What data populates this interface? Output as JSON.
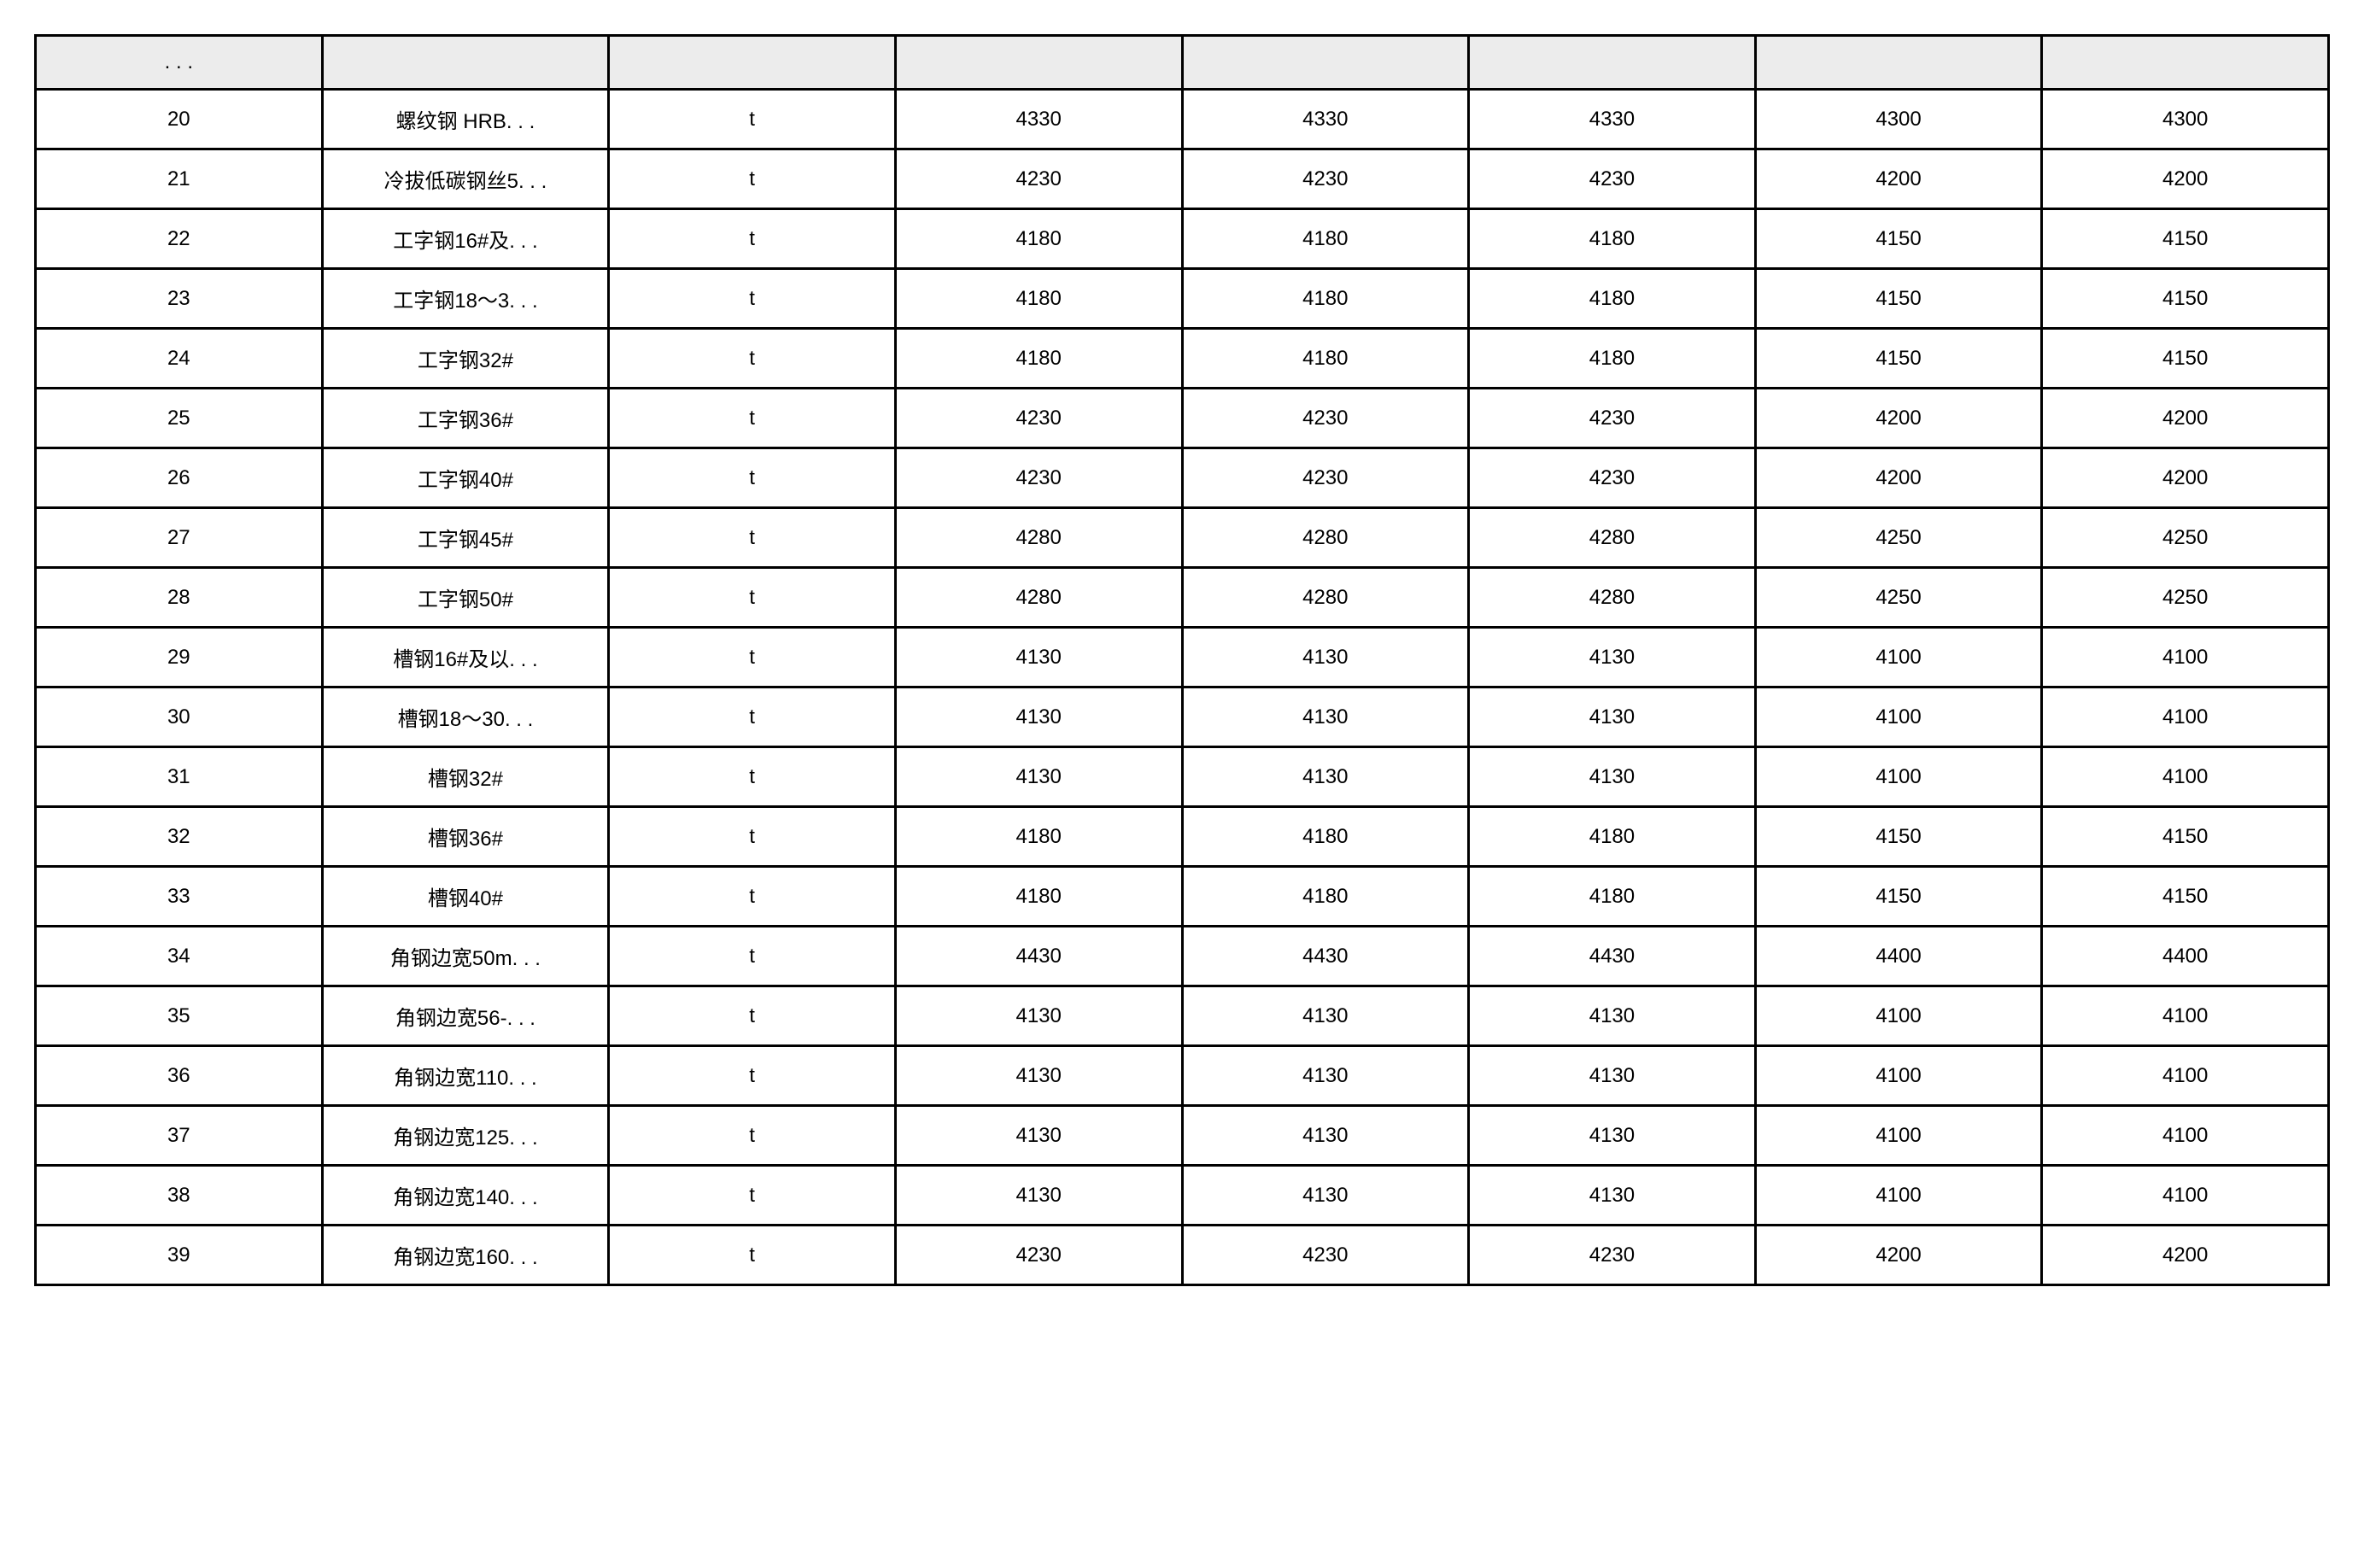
{
  "table": {
    "type": "table",
    "background_color": "#ffffff",
    "header_background_color": "#ececec",
    "border_color": "#000000",
    "border_width": 3,
    "text_color": "#000000",
    "font_size": 24,
    "columns": [
      ". . .",
      "",
      "",
      "",
      "",
      "",
      "",
      ""
    ],
    "column_widths_percent": [
      12.5,
      12.5,
      12.5,
      12.5,
      12.5,
      12.5,
      12.5,
      12.5
    ],
    "column_alignment": [
      "center",
      "center",
      "center",
      "center",
      "center",
      "center",
      "center",
      "center"
    ],
    "rows": [
      [
        "20",
        "螺纹钢 HRB. . .",
        "t",
        "4330",
        "4330",
        "4330",
        "4300",
        "4300"
      ],
      [
        "21",
        "冷拔低碳钢丝5. . .",
        "t",
        "4230",
        "4230",
        "4230",
        "4200",
        "4200"
      ],
      [
        "22",
        "工字钢16#及. . .",
        "t",
        "4180",
        "4180",
        "4180",
        "4150",
        "4150"
      ],
      [
        "23",
        "工字钢18～3. . .",
        "t",
        "4180",
        "4180",
        "4180",
        "4150",
        "4150"
      ],
      [
        "24",
        "工字钢32#",
        "t",
        "4180",
        "4180",
        "4180",
        "4150",
        "4150"
      ],
      [
        "25",
        "工字钢36#",
        "t",
        "4230",
        "4230",
        "4230",
        "4200",
        "4200"
      ],
      [
        "26",
        "工字钢40#",
        "t",
        "4230",
        "4230",
        "4230",
        "4200",
        "4200"
      ],
      [
        "27",
        "工字钢45#",
        "t",
        "4280",
        "4280",
        "4280",
        "4250",
        "4250"
      ],
      [
        "28",
        "工字钢50#",
        "t",
        "4280",
        "4280",
        "4280",
        "4250",
        "4250"
      ],
      [
        "29",
        "槽钢16#及以. . .",
        "t",
        "4130",
        "4130",
        "4130",
        "4100",
        "4100"
      ],
      [
        "30",
        "槽钢18～30. . .",
        "t",
        "4130",
        "4130",
        "4130",
        "4100",
        "4100"
      ],
      [
        "31",
        "槽钢32#",
        "t",
        "4130",
        "4130",
        "4130",
        "4100",
        "4100"
      ],
      [
        "32",
        "槽钢36#",
        "t",
        "4180",
        "4180",
        "4180",
        "4150",
        "4150"
      ],
      [
        "33",
        "槽钢40#",
        "t",
        "4180",
        "4180",
        "4180",
        "4150",
        "4150"
      ],
      [
        "34",
        "角钢边宽50m. . .",
        "t",
        "4430",
        "4430",
        "4430",
        "4400",
        "4400"
      ],
      [
        "35",
        "角钢边宽56-. . .",
        "t",
        "4130",
        "4130",
        "4130",
        "4100",
        "4100"
      ],
      [
        "36",
        "角钢边宽110. . .",
        "t",
        "4130",
        "4130",
        "4130",
        "4100",
        "4100"
      ],
      [
        "37",
        "角钢边宽125. . .",
        "t",
        "4130",
        "4130",
        "4130",
        "4100",
        "4100"
      ],
      [
        "38",
        "角钢边宽140. . .",
        "t",
        "4130",
        "4130",
        "4130",
        "4100",
        "4100"
      ],
      [
        "39",
        "角钢边宽160. . .",
        "t",
        "4230",
        "4230",
        "4230",
        "4200",
        "4200"
      ]
    ]
  }
}
